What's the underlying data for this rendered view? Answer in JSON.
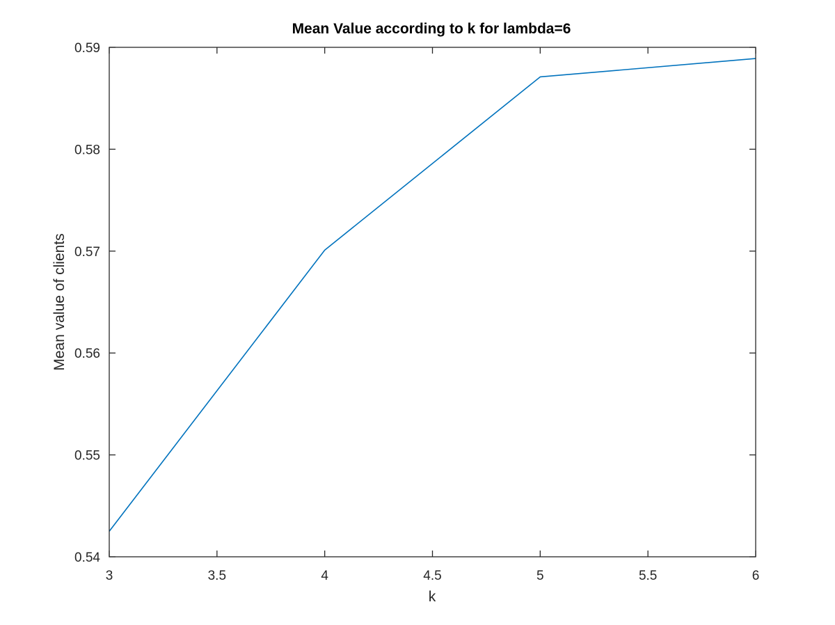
{
  "chart_data": {
    "type": "line",
    "title": "Mean Value according to k for lambda=6",
    "xlabel": "k",
    "ylabel": "Mean value of clients",
    "xlim": [
      3,
      6
    ],
    "ylim": [
      0.54,
      0.59
    ],
    "xticks": [
      3,
      3.5,
      4,
      4.5,
      5,
      5.5,
      6
    ],
    "xtick_labels": [
      "3",
      "3.5",
      "4",
      "4.5",
      "5",
      "5.5",
      "6"
    ],
    "yticks": [
      0.54,
      0.55,
      0.56,
      0.57,
      0.58,
      0.59
    ],
    "ytick_labels": [
      "0.54",
      "0.55",
      "0.56",
      "0.57",
      "0.58",
      "0.59"
    ],
    "grid": false,
    "series": [
      {
        "x": [
          3,
          4,
          5,
          6
        ],
        "y": [
          0.5425,
          0.5701,
          0.5871,
          0.5889
        ],
        "color": "#0072BD"
      }
    ],
    "axes_color": "#262626",
    "background": "#ffffff"
  }
}
